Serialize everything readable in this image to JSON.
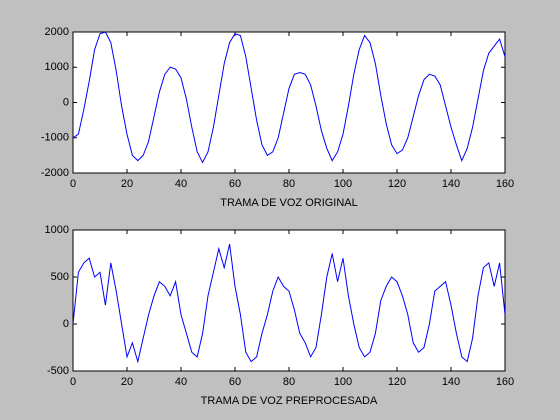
{
  "chart_data": [
    {
      "type": "line",
      "xlabel": "TRAMA DE VOZ ORIGINAL",
      "color": "#0000ff",
      "xlim": [
        0,
        160
      ],
      "ylim": [
        -2000,
        2000
      ],
      "xticks": [
        0,
        20,
        40,
        60,
        80,
        100,
        120,
        140,
        160
      ],
      "yticks": [
        -2000,
        -1000,
        0,
        1000,
        2000
      ],
      "x": [
        0,
        2,
        4,
        6,
        8,
        10,
        12,
        14,
        16,
        18,
        20,
        22,
        24,
        26,
        28,
        30,
        32,
        34,
        36,
        38,
        40,
        42,
        44,
        46,
        48,
        50,
        52,
        54,
        56,
        58,
        60,
        62,
        64,
        66,
        68,
        70,
        72,
        74,
        76,
        78,
        80,
        82,
        84,
        86,
        88,
        90,
        92,
        94,
        96,
        98,
        100,
        102,
        104,
        106,
        108,
        110,
        112,
        114,
        116,
        118,
        120,
        122,
        124,
        126,
        128,
        130,
        132,
        134,
        136,
        138,
        140,
        142,
        144,
        146,
        148,
        150,
        152,
        154,
        156,
        158,
        160
      ],
      "values": [
        -1000,
        -900,
        -200,
        600,
        1500,
        1950,
        2000,
        1700,
        900,
        -100,
        -900,
        -1500,
        -1650,
        -1500,
        -1100,
        -400,
        300,
        800,
        1000,
        950,
        700,
        100,
        -700,
        -1400,
        -1700,
        -1400,
        -700,
        200,
        1100,
        1700,
        1950,
        1900,
        1300,
        400,
        -500,
        -1200,
        -1500,
        -1400,
        -1000,
        -300,
        400,
        800,
        850,
        800,
        500,
        -100,
        -800,
        -1300,
        -1650,
        -1400,
        -900,
        -100,
        800,
        1500,
        1900,
        1700,
        1100,
        200,
        -600,
        -1200,
        -1450,
        -1350,
        -1000,
        -400,
        200,
        650,
        800,
        750,
        500,
        -100,
        -700,
        -1200,
        -1650,
        -1300,
        -700,
        100,
        900,
        1400,
        1600,
        1800,
        1300
      ]
    },
    {
      "type": "line",
      "xlabel": "TRAMA DE VOZ PREPROCESADA",
      "color": "#0000ff",
      "xlim": [
        0,
        160
      ],
      "ylim": [
        -500,
        1000
      ],
      "xticks": [
        0,
        20,
        40,
        60,
        80,
        100,
        120,
        140,
        160
      ],
      "yticks": [
        -500,
        0,
        500,
        1000
      ],
      "x": [
        0,
        2,
        4,
        6,
        8,
        10,
        12,
        14,
        16,
        18,
        20,
        22,
        24,
        26,
        28,
        30,
        32,
        34,
        36,
        38,
        40,
        42,
        44,
        46,
        48,
        50,
        52,
        54,
        56,
        58,
        60,
        62,
        64,
        66,
        68,
        70,
        72,
        74,
        76,
        78,
        80,
        82,
        84,
        86,
        88,
        90,
        92,
        94,
        96,
        98,
        100,
        102,
        104,
        106,
        108,
        110,
        112,
        114,
        116,
        118,
        120,
        122,
        124,
        126,
        128,
        130,
        132,
        134,
        136,
        138,
        140,
        142,
        144,
        146,
        148,
        150,
        152,
        154,
        156,
        158,
        160
      ],
      "values": [
        0,
        550,
        650,
        700,
        500,
        550,
        200,
        650,
        350,
        0,
        -350,
        -200,
        -400,
        -150,
        100,
        300,
        450,
        400,
        300,
        450,
        100,
        -100,
        -300,
        -350,
        -100,
        300,
        550,
        800,
        600,
        850,
        400,
        100,
        -300,
        -400,
        -350,
        -100,
        100,
        350,
        500,
        400,
        350,
        150,
        -100,
        -200,
        -350,
        -250,
        100,
        500,
        750,
        450,
        700,
        300,
        0,
        -250,
        -350,
        -300,
        -100,
        250,
        400,
        500,
        450,
        300,
        100,
        -200,
        -300,
        -250,
        0,
        350,
        400,
        450,
        200,
        -100,
        -350,
        -400,
        -150,
        300,
        600,
        650,
        400,
        650,
        100
      ]
    }
  ]
}
